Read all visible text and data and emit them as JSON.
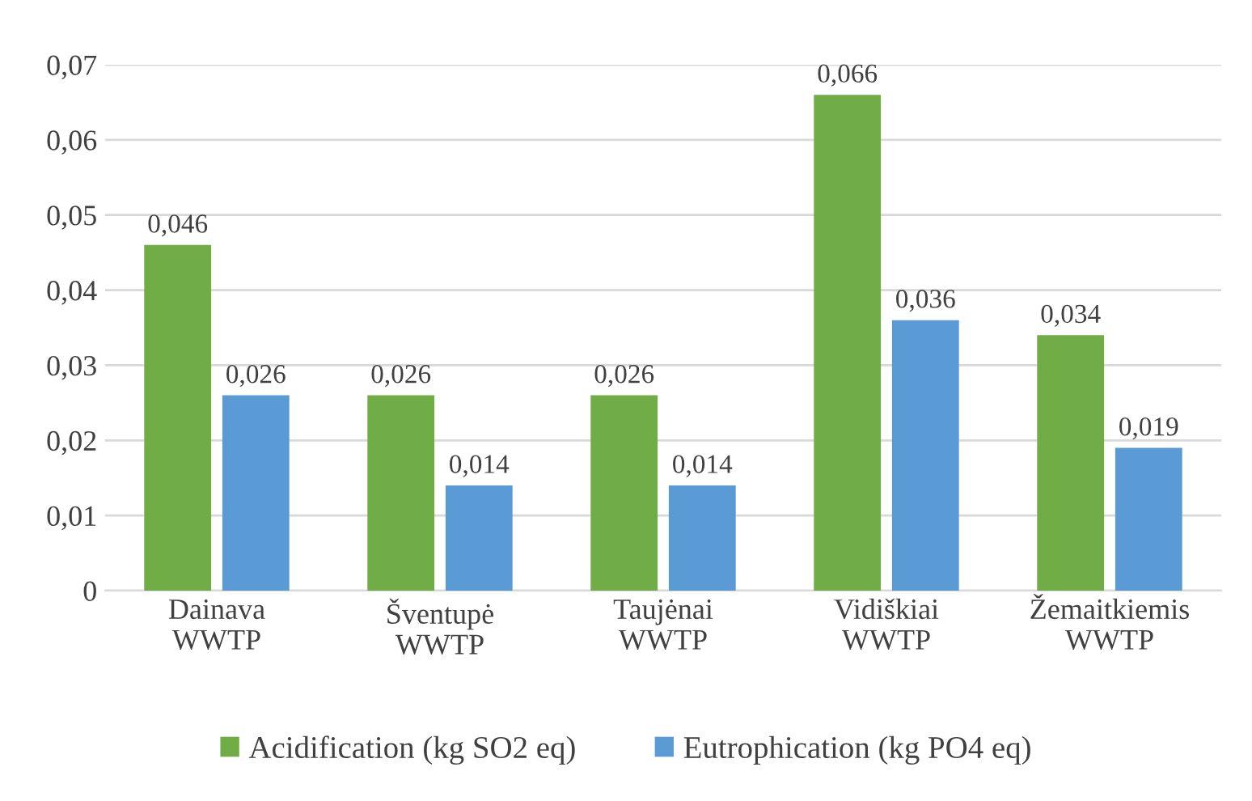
{
  "chart_data": {
    "type": "bar",
    "categories": [
      "Dainava\nWWTP",
      "Šventupė\nWWTP",
      "Taujėnai\nWWTP",
      "Vidiškiai\nWWTP",
      "Žemaitkiemis\nWWTP"
    ],
    "series": [
      {
        "name": "Acidification (kg SO2 eq)",
        "color": "#70ad47",
        "values": [
          0.046,
          0.026,
          0.026,
          0.066,
          0.034
        ],
        "value_labels": [
          "0,046",
          "0,026",
          "0,026",
          "0,066",
          "0,034"
        ]
      },
      {
        "name": "Eutrophication (kg PO4 eq)",
        "color": "#5b9bd5",
        "values": [
          0.026,
          0.014,
          0.014,
          0.036,
          0.019
        ],
        "value_labels": [
          "0,026",
          "0,014",
          "0,014",
          "0,036",
          "0,019"
        ]
      }
    ],
    "ylim": [
      0,
      0.07
    ],
    "yticks": [
      0,
      {
        "value": 0.01,
        "label": "0,01"
      },
      {
        "value": 0.02,
        "label": "0,02"
      },
      {
        "value": 0.03,
        "label": "0,03"
      },
      {
        "value": 0.04,
        "label": "0,04"
      },
      {
        "value": 0.05,
        "label": "0,05"
      },
      {
        "value": 0.06,
        "label": "0,06"
      },
      {
        "value": 0.07,
        "label": "0,07"
      }
    ],
    "grid": "y",
    "legend": "bottom"
  }
}
